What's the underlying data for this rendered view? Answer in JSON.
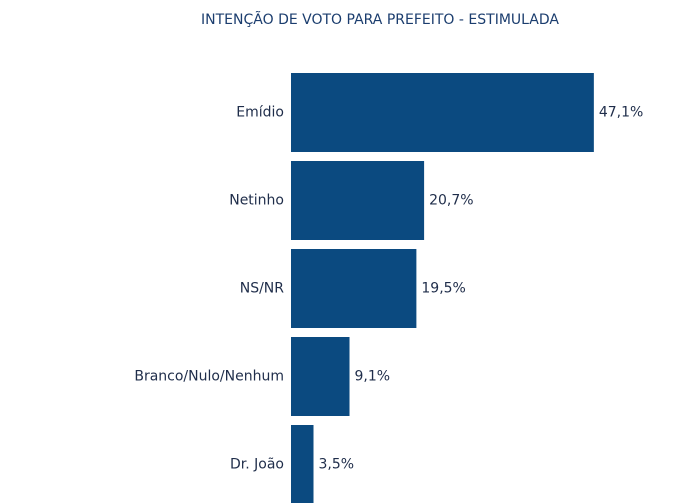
{
  "chart_data": {
    "type": "barh",
    "title": "INTENÇÃO DE VOTO PARA PREFEITO - ESTIMULADA",
    "categories": [
      "Emídio",
      "Netinho",
      "NS/NR",
      "Branco/Nulo/Nenhum",
      "Dr. João"
    ],
    "values": [
      47.1,
      20.7,
      19.5,
      9.1,
      3.5
    ],
    "value_labels": [
      "47,1%",
      "20,7%",
      "19,5%",
      "9,1%",
      "3,5%"
    ],
    "color": "#0b4a80"
  }
}
